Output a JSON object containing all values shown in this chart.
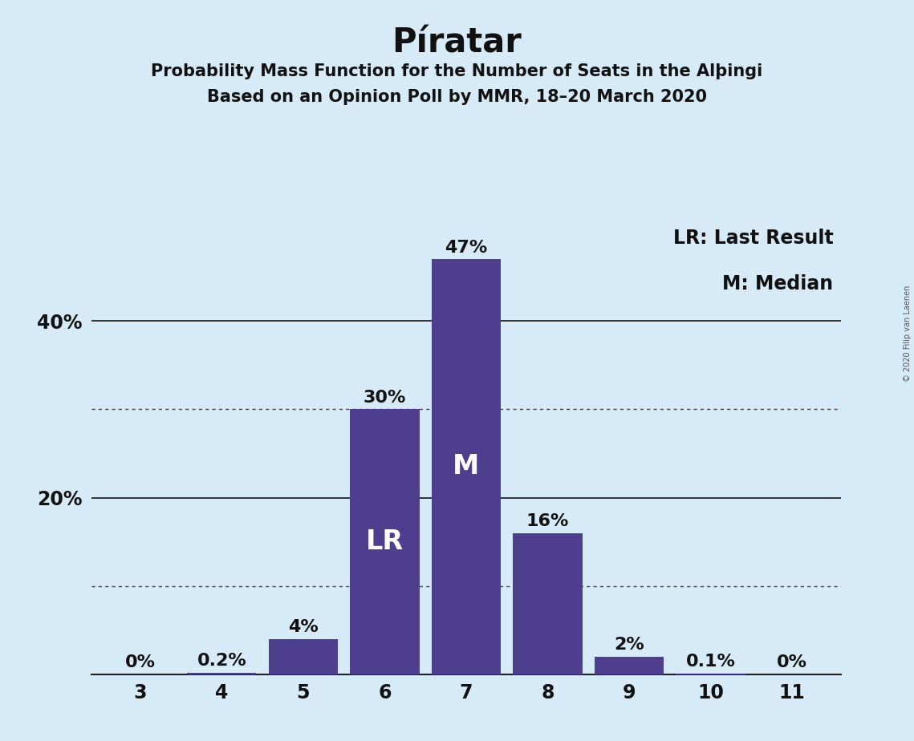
{
  "title": "Píratar",
  "subtitle1": "Probability Mass Function for the Number of Seats in the Alþingi",
  "subtitle2": "Based on an Opinion Poll by MMR, 18–20 March 2020",
  "copyright": "© 2020 Filip van Laenen",
  "categories": [
    3,
    4,
    5,
    6,
    7,
    8,
    9,
    10,
    11
  ],
  "values": [
    0.0,
    0.2,
    4.0,
    30.0,
    47.0,
    16.0,
    2.0,
    0.1,
    0.0
  ],
  "labels": [
    "0%",
    "0.2%",
    "4%",
    "30%",
    "47%",
    "16%",
    "2%",
    "0.1%",
    "0%"
  ],
  "bar_color": "#4e3f8e",
  "background_color": "#d6eaf8",
  "bar_label_color_inside": "#ffffff",
  "bar_label_color_outside": "#111111",
  "lr_bar": 6,
  "median_bar": 7,
  "lr_label": "LR",
  "median_label": "M",
  "legend_lr": "LR: Last Result",
  "legend_m": "M: Median",
  "ylim": [
    0,
    52
  ],
  "solid_ytick_vals": [
    20,
    40
  ],
  "dotted_ytick_vals": [
    10,
    30
  ],
  "ytick_positions": [
    20,
    40
  ],
  "ytick_labels": [
    "20%",
    "40%"
  ],
  "title_fontsize": 30,
  "subtitle_fontsize": 15,
  "outside_label_fontsize": 16,
  "tick_fontsize": 17,
  "inside_label_fontsize": 24,
  "legend_fontsize": 17,
  "bar_label_inside_threshold": 8.0
}
